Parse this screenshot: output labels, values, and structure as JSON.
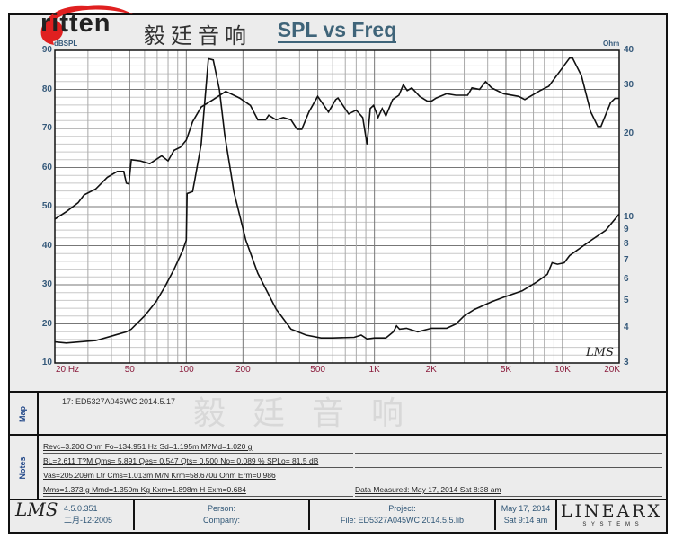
{
  "header": {
    "logo": "ritten",
    "logo_cn": "毅廷音响",
    "title": "SPL vs Freq",
    "watermark": "毅廷音响"
  },
  "chart_data": {
    "type": "line",
    "title": "SPL vs Freq",
    "x_scale": "log",
    "xlim": [
      20,
      20000
    ],
    "x_ticks": [
      {
        "v": 20,
        "label": "20  Hz"
      },
      {
        "v": 50,
        "label": "50"
      },
      {
        "v": 100,
        "label": "100"
      },
      {
        "v": 200,
        "label": "200"
      },
      {
        "v": 500,
        "label": "500"
      },
      {
        "v": 1000,
        "label": "1K"
      },
      {
        "v": 2000,
        "label": "2K"
      },
      {
        "v": 5000,
        "label": "5K"
      },
      {
        "v": 10000,
        "label": "10K"
      },
      {
        "v": 20000,
        "label": "20K"
      }
    ],
    "ylabel_left": "dBSPL",
    "ylim_left": [
      10,
      90
    ],
    "y_ticks_left": [
      10,
      20,
      30,
      40,
      50,
      60,
      70,
      80,
      90
    ],
    "ylabel_right": "Ohm",
    "y_scale_right": "log",
    "ylim_right": [
      3,
      40
    ],
    "y_ticks_right": [
      3,
      4,
      5,
      6,
      7,
      8,
      9,
      10,
      20,
      30,
      40
    ],
    "grid": true,
    "series": [
      {
        "axis": "left",
        "points": [
          [
            20,
            46.8
          ],
          [
            23,
            48.7
          ],
          [
            26.6,
            51
          ],
          [
            28.6,
            53
          ],
          [
            33,
            54.5
          ],
          [
            38,
            57.5
          ],
          [
            43,
            59
          ],
          [
            46.5,
            59
          ],
          [
            48,
            56
          ],
          [
            49.5,
            55.8
          ],
          [
            51,
            62
          ],
          [
            57,
            61.7
          ],
          [
            64,
            61
          ],
          [
            74,
            63
          ],
          [
            80,
            61.7
          ],
          [
            86,
            64.4
          ],
          [
            93,
            65.2
          ],
          [
            100,
            67
          ],
          [
            108,
            71.7
          ],
          [
            120,
            75.5
          ],
          [
            139,
            77.4
          ],
          [
            162,
            79.5
          ],
          [
            192,
            77.8
          ],
          [
            219,
            75.9
          ],
          [
            240,
            72.2
          ],
          [
            264,
            72.2
          ],
          [
            274,
            73.4
          ],
          [
            300,
            72.2
          ],
          [
            328,
            72.8
          ],
          [
            360,
            72.2
          ],
          [
            388,
            69.8
          ],
          [
            411,
            69.8
          ],
          [
            449,
            74.3
          ],
          [
            499,
            78.2
          ],
          [
            570,
            74.2
          ],
          [
            623,
            77.4
          ],
          [
            640,
            77.8
          ],
          [
            730,
            73.7
          ],
          [
            800,
            74.7
          ],
          [
            866,
            72.8
          ],
          [
            913,
            65.9
          ],
          [
            950,
            75.1
          ],
          [
            990,
            75.9
          ],
          [
            1046,
            72.8
          ],
          [
            1100,
            75.1
          ],
          [
            1150,
            73.2
          ],
          [
            1250,
            77.4
          ],
          [
            1350,
            78.5
          ],
          [
            1425,
            81.2
          ],
          [
            1495,
            79.7
          ],
          [
            1580,
            80.4
          ],
          [
            1740,
            78.2
          ],
          [
            1910,
            77
          ],
          [
            2010,
            77
          ],
          [
            2130,
            77.8
          ],
          [
            2420,
            78.9
          ],
          [
            2710,
            78.5
          ],
          [
            3130,
            78.5
          ],
          [
            3300,
            80.4
          ],
          [
            3620,
            80
          ],
          [
            3900,
            82
          ],
          [
            4200,
            80.4
          ],
          [
            4860,
            78.9
          ],
          [
            5850,
            78.2
          ],
          [
            6300,
            77.4
          ],
          [
            7600,
            79.7
          ],
          [
            8450,
            80.8
          ],
          [
            9800,
            85
          ],
          [
            10900,
            88
          ],
          [
            11300,
            88
          ],
          [
            12600,
            83.5
          ],
          [
            14100,
            74.3
          ],
          [
            15400,
            70.5
          ],
          [
            16000,
            70.5
          ],
          [
            18000,
            76.6
          ],
          [
            19000,
            77.7
          ],
          [
            20000,
            77.7
          ]
        ]
      },
      {
        "axis": "right",
        "points": [
          [
            20,
            3.57
          ],
          [
            23,
            3.54
          ],
          [
            33,
            3.61
          ],
          [
            48,
            3.88
          ],
          [
            51,
            3.97
          ],
          [
            60,
            4.43
          ],
          [
            69,
            4.98
          ],
          [
            77,
            5.65
          ],
          [
            86,
            6.51
          ],
          [
            96,
            7.66
          ],
          [
            100,
            8.3
          ],
          [
            101,
            12.2
          ],
          [
            108,
            12.4
          ],
          [
            111,
            13.7
          ],
          [
            120,
            18.4
          ],
          [
            131,
            37.3
          ],
          [
            139,
            36.9
          ],
          [
            150,
            28.8
          ],
          [
            160,
            19.9
          ],
          [
            172,
            14.7
          ],
          [
            179,
            12.4
          ],
          [
            207,
            8.3
          ],
          [
            240,
            6.3
          ],
          [
            300,
            4.69
          ],
          [
            360,
            3.97
          ],
          [
            433,
            3.78
          ],
          [
            520,
            3.69
          ],
          [
            600,
            3.69
          ],
          [
            780,
            3.71
          ],
          [
            850,
            3.78
          ],
          [
            913,
            3.66
          ],
          [
            1000,
            3.69
          ],
          [
            1150,
            3.69
          ],
          [
            1260,
            3.88
          ],
          [
            1310,
            4.08
          ],
          [
            1360,
            3.97
          ],
          [
            1480,
            4.0
          ],
          [
            1700,
            3.88
          ],
          [
            2010,
            4.0
          ],
          [
            2420,
            4.0
          ],
          [
            2710,
            4.14
          ],
          [
            3000,
            4.43
          ],
          [
            3400,
            4.67
          ],
          [
            4200,
            4.98
          ],
          [
            4860,
            5.17
          ],
          [
            6100,
            5.45
          ],
          [
            7300,
            5.87
          ],
          [
            8300,
            6.25
          ],
          [
            8800,
            6.88
          ],
          [
            9400,
            6.8
          ],
          [
            10200,
            6.88
          ],
          [
            10900,
            7.3
          ],
          [
            14100,
            8.26
          ],
          [
            16900,
            8.98
          ],
          [
            20000,
            10.3
          ]
        ]
      }
    ],
    "annotation": "LMS"
  },
  "map": {
    "label": "Map",
    "entry": "17: ED5327A045WC",
    "date": "2014.5.17"
  },
  "notes": {
    "label": "Notes",
    "lines": [
      "Revc=3.200 Ohm  Fo=134.951 Hz  Sd=1.195m M?Md=1.020 g",
      "BL=2.611 T?M  Qms= 5.891  Qes= 0.547  Qts= 0.500  No= 0.089 %  SPLo= 81.5 dB",
      "Vas=205.209m Ltr  Cms=1.013m M/N  Krm=58.670u Ohm  Erm=0.986",
      "Mms=1.373 g  Mmd=1.350m Kg  Kxm=1.898m H  Exm=0.684"
    ],
    "measured": "Data Measured: May 17, 2014  Sat  8:38 am"
  },
  "footer": {
    "lms": "LMS",
    "version": "4.5.0.351",
    "build_date": "二月-12-2005",
    "person": "Person:",
    "company": "Company:",
    "project": "Project:",
    "file": "File: ED5327A045WC 2014.5.5.lib",
    "date": "May 17, 2014",
    "time": "Sat  9:14 am",
    "brand": "LINEARX",
    "brand_sub": "S Y S T E M S"
  }
}
